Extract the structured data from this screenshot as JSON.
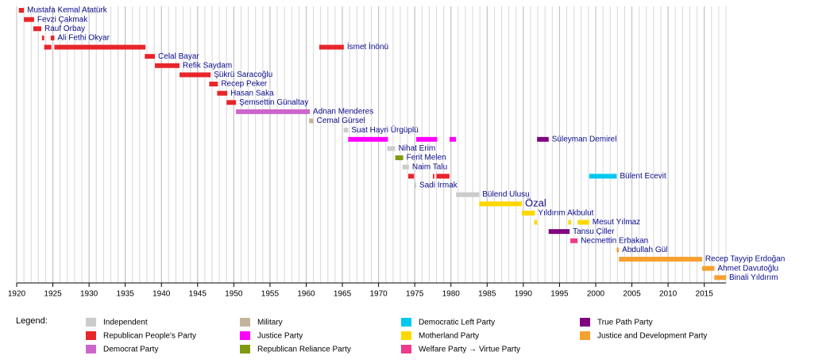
{
  "chart_data": {
    "type": "timeline",
    "xlim": [
      1920,
      2018
    ],
    "xticks": [
      1920,
      1925,
      1930,
      1935,
      1940,
      1945,
      1950,
      1955,
      1960,
      1965,
      1970,
      1975,
      1980,
      1985,
      1990,
      1995,
      2000,
      2005,
      2010,
      2015
    ],
    "minor_grid_step": 1,
    "grid": true,
    "legend_title": "Legend:",
    "parties": [
      {
        "name": "Independent",
        "color": "#cccccc"
      },
      {
        "name": "Republican People's Party",
        "color": "#e8252a"
      },
      {
        "name": "Democrat Party",
        "color": "#cc66cc"
      },
      {
        "name": "Military",
        "color": "#c4b49c"
      },
      {
        "name": "Justice Party",
        "color": "#ff00ff"
      },
      {
        "name": "Republican Reliance Party",
        "color": "#809a10"
      },
      {
        "name": "Democratic Left Party",
        "color": "#00c8f0"
      },
      {
        "name": "Motherland Party",
        "color": "#ffd700"
      },
      {
        "name": "Welfare Party → Virtue Party",
        "color": "#ee3a8a"
      },
      {
        "name": "True Path Party",
        "color": "#800080"
      },
      {
        "name": "Justice and Development Party",
        "color": "#f7a030"
      }
    ],
    "rows": [
      {
        "name": "Mustafa Kemal Atatürk",
        "segments": [
          {
            "start": 1920.3,
            "end": 1921.0,
            "party": "Republican People's Party"
          }
        ]
      },
      {
        "name": "Fevzi Çakmak",
        "segments": [
          {
            "start": 1921.0,
            "end": 1922.4,
            "party": "Republican People's Party"
          }
        ]
      },
      {
        "name": "Rauf Orbay",
        "segments": [
          {
            "start": 1922.3,
            "end": 1923.4,
            "party": "Republican People's Party"
          }
        ]
      },
      {
        "name": "Ali Fethi Okyar",
        "segments": [
          {
            "start": 1923.5,
            "end": 1923.8,
            "party": "Republican People's Party"
          },
          {
            "start": 1924.7,
            "end": 1925.2,
            "party": "Republican People's Party"
          }
        ]
      },
      {
        "name": "İsmet İnönü",
        "segments": [
          {
            "start": 1923.8,
            "end": 1924.8,
            "party": "Republican People's Party"
          },
          {
            "start": 1925.2,
            "end": 1937.8,
            "party": "Republican People's Party"
          },
          {
            "start": 1961.8,
            "end": 1965.2,
            "party": "Republican People's Party"
          }
        ]
      },
      {
        "name": "Celal Bayar",
        "segments": [
          {
            "start": 1937.7,
            "end": 1939.1,
            "party": "Republican People's Party"
          }
        ]
      },
      {
        "name": "Refik Saydam",
        "segments": [
          {
            "start": 1939.1,
            "end": 1942.5,
            "party": "Republican People's Party"
          }
        ]
      },
      {
        "name": "Şükrü Saracoğlu",
        "segments": [
          {
            "start": 1942.5,
            "end": 1946.8,
            "party": "Republican People's Party"
          }
        ]
      },
      {
        "name": "Recep Peker",
        "segments": [
          {
            "start": 1946.6,
            "end": 1947.8,
            "party": "Republican People's Party"
          }
        ]
      },
      {
        "name": "Hasan Saka",
        "segments": [
          {
            "start": 1947.7,
            "end": 1949.1,
            "party": "Republican People's Party"
          }
        ]
      },
      {
        "name": "Şemsettin Günaltay",
        "segments": [
          {
            "start": 1949.0,
            "end": 1950.3,
            "party": "Republican People's Party"
          }
        ]
      },
      {
        "name": "Adnan Menderes",
        "segments": [
          {
            "start": 1950.3,
            "end": 1960.5,
            "party": "Democrat Party"
          }
        ]
      },
      {
        "name": "Cemal Gürsel",
        "segments": [
          {
            "start": 1960.4,
            "end": 1961.0,
            "party": "Military"
          }
        ]
      },
      {
        "name": "Suat Hayri Ürgüplü",
        "segments": [
          {
            "start": 1965.2,
            "end": 1965.8,
            "party": "Independent"
          }
        ]
      },
      {
        "name": "Süleyman Demirel",
        "segments": [
          {
            "start": 1965.8,
            "end": 1971.3,
            "party": "Justice Party"
          },
          {
            "start": 1975.2,
            "end": 1978.1,
            "party": "Justice Party"
          },
          {
            "start": 1979.8,
            "end": 1980.7,
            "party": "Justice Party"
          },
          {
            "start": 1991.9,
            "end": 1993.5,
            "party": "True Path Party"
          }
        ]
      },
      {
        "name": "Nihat Erim",
        "segments": [
          {
            "start": 1971.2,
            "end": 1972.3,
            "party": "Independent"
          }
        ]
      },
      {
        "name": "Ferit Melen",
        "segments": [
          {
            "start": 1972.3,
            "end": 1973.4,
            "party": "Republican Reliance Party"
          }
        ]
      },
      {
        "name": "Naim Talu",
        "segments": [
          {
            "start": 1973.3,
            "end": 1974.2,
            "party": "Independent"
          }
        ]
      },
      {
        "name": "Bülent Ecevit",
        "segments": [
          {
            "start": 1974.1,
            "end": 1974.9,
            "party": "Republican People's Party"
          },
          {
            "start": 1977.5,
            "end": 1977.7,
            "party": "Republican People's Party"
          },
          {
            "start": 1978.0,
            "end": 1979.8,
            "party": "Republican People's Party"
          },
          {
            "start": 1999.1,
            "end": 2002.9,
            "party": "Democratic Left Party"
          }
        ]
      },
      {
        "name": "Sadi Irmak",
        "segments": [
          {
            "start": 1974.9,
            "end": 1975.2,
            "party": "Independent"
          }
        ]
      },
      {
        "name": "Bülend Ulusu",
        "segments": [
          {
            "start": 1980.7,
            "end": 1983.9,
            "party": "Independent"
          }
        ]
      },
      {
        "name": "Özal",
        "segments": [
          {
            "start": 1983.9,
            "end": 1989.8,
            "party": "Motherland Party"
          }
        ]
      },
      {
        "name": "Yıldırım Akbulut",
        "segments": [
          {
            "start": 1989.8,
            "end": 1991.6,
            "party": "Motherland Party"
          }
        ]
      },
      {
        "name": "Mesut Yılmaz",
        "segments": [
          {
            "start": 1991.5,
            "end": 1991.9,
            "party": "Motherland Party"
          },
          {
            "start": 1996.2,
            "end": 1996.6,
            "party": "Motherland Party"
          },
          {
            "start": 1997.5,
            "end": 1999.1,
            "party": "Motherland Party"
          }
        ]
      },
      {
        "name": "Tansu Çiller",
        "segments": [
          {
            "start": 1993.5,
            "end": 1996.4,
            "party": "True Path Party"
          }
        ]
      },
      {
        "name": "Necmettin Erbakan",
        "segments": [
          {
            "start": 1996.5,
            "end": 1997.5,
            "party": "Welfare Party → Virtue Party"
          }
        ]
      },
      {
        "name": "Abdullah Gül",
        "segments": [
          {
            "start": 2002.9,
            "end": 2003.2,
            "party": "Justice and Development Party"
          }
        ]
      },
      {
        "name": "Recep Tayyip Erdoğan",
        "segments": [
          {
            "start": 2003.2,
            "end": 2014.7,
            "party": "Justice and Development Party"
          }
        ]
      },
      {
        "name": "Ahmet Davutoğlu",
        "segments": [
          {
            "start": 2014.7,
            "end": 2016.4,
            "party": "Justice and Development Party"
          }
        ]
      },
      {
        "name": "Binali Yıldırım",
        "segments": [
          {
            "start": 2016.4,
            "end": 2018.0,
            "party": "Justice and Development Party"
          }
        ]
      }
    ]
  }
}
